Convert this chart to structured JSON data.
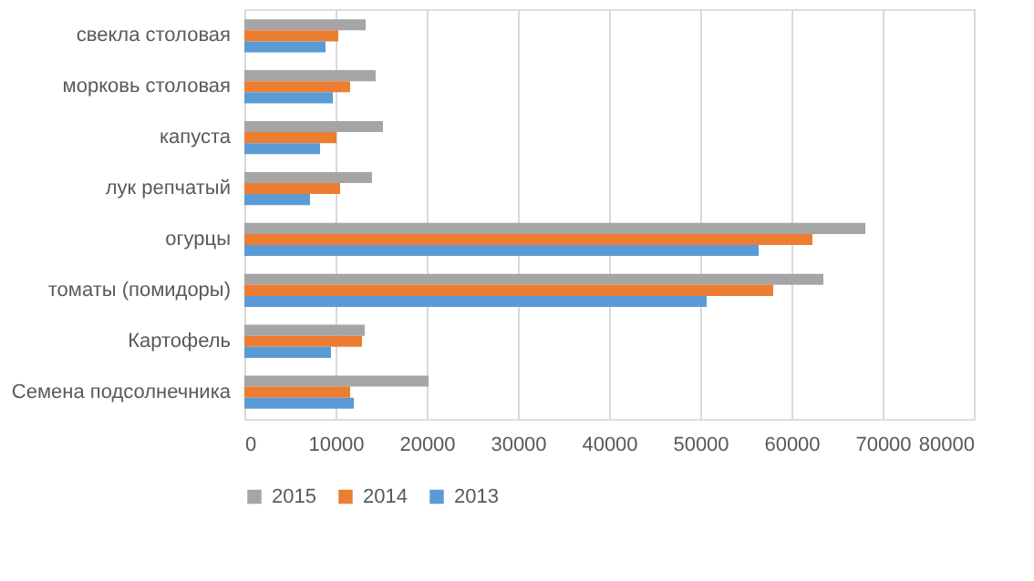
{
  "chart_data": {
    "type": "bar",
    "orientation": "horizontal",
    "categories": [
      "свекла столовая",
      "морковь столовая",
      "капуста",
      "лук репчатый",
      "огурцы",
      "томаты (помидоры)",
      "Картофель",
      "Семена подсолнечника"
    ],
    "series": [
      {
        "name": "2015",
        "color": "#a5a5a5",
        "values": [
          13300,
          14400,
          15200,
          14000,
          68100,
          63500,
          13200,
          20200
        ]
      },
      {
        "name": "2014",
        "color": "#ed7d31",
        "values": [
          10300,
          11600,
          10100,
          10500,
          62300,
          58000,
          12900,
          11600
        ]
      },
      {
        "name": "2013",
        "color": "#5b9bd5",
        "values": [
          8900,
          9700,
          8300,
          7200,
          56400,
          50700,
          9500,
          12000
        ]
      }
    ],
    "xlim": [
      0,
      80000
    ],
    "xticks": [
      0,
      10000,
      20000,
      30000,
      40000,
      50000,
      60000,
      70000,
      80000
    ],
    "grid": "x",
    "legend": "bottom"
  }
}
